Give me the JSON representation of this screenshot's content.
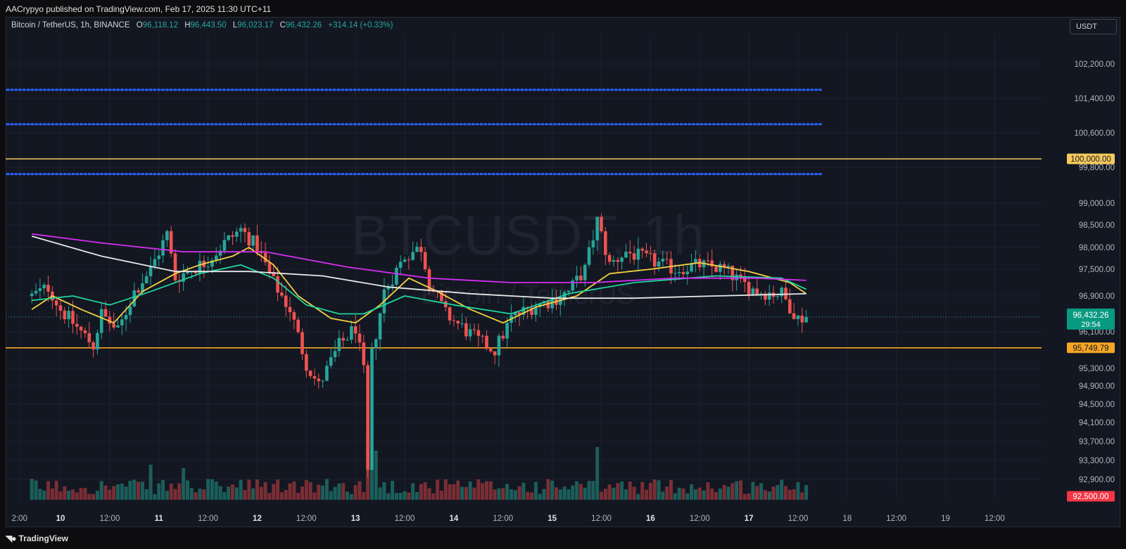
{
  "header": {
    "published": "AACrypyo published on TradingView.com, Feb 17, 2025 11:30 UTC+11"
  },
  "legend": {
    "symbol": "Bitcoin / TetherUS, 1h, BINANCE",
    "o_label": "O",
    "o": "96,118.12",
    "h_label": "H",
    "h": "96,443.50",
    "l_label": "L",
    "l": "96,023.17",
    "c_label": "C",
    "c": "96,432.26",
    "change": "+314.14 (+0.33%)"
  },
  "currency_button": "USDT",
  "watermark": {
    "ticker": "BTCUSDT, 1h",
    "name": "Bitcoin / TetherUS"
  },
  "footer": {
    "logo": "TradingView"
  },
  "colors": {
    "background": "#131722",
    "grid": "#1e2230",
    "up": "#26a69a",
    "down": "#ef5350",
    "volume_up": "#1b5e5a",
    "volume_down": "#7a2e34",
    "ma_yellow": "#f5d042",
    "ma_green": "#1fd6a0",
    "ma_magenta": "#d42ef0",
    "ma_white": "#e8e8e8",
    "dotted": "#2962ff",
    "level_yellow": "#f7c95c",
    "level_orange": "#f5a623",
    "current_price_bg": "#089981",
    "low_bg": "#f23645"
  },
  "chart_data": {
    "type": "candlestick",
    "title": "BTCUSDT, 1h",
    "ylim": [
      92500,
      103200
    ],
    "x_time_range": [
      "Feb 9 ~12:00",
      "Feb 19 ~21:00"
    ],
    "y_ticks": [
      "102,200.00",
      "101,400.00",
      "100,600.00",
      "99,800.00",
      "99,000.00",
      "98,500.00",
      "98,000.00",
      "97,500.00",
      "96,900.00",
      "96,100.00",
      "95,300.00",
      "94,900.00",
      "94,500.00",
      "94,100.00",
      "93,700.00",
      "93,300.00",
      "92,900.00"
    ],
    "y_tick_values": [
      102200,
      101400,
      100600,
      99800,
      99000,
      98500,
      98000,
      97500,
      96900,
      96100,
      95300,
      94900,
      94500,
      94100,
      93700,
      93300,
      92900
    ],
    "x_ticks": [
      {
        "label": "2:00",
        "hour": -10
      },
      {
        "label": "10",
        "hour": 0
      },
      {
        "label": "12:00",
        "hour": 12
      },
      {
        "label": "11",
        "hour": 24
      },
      {
        "label": "12:00",
        "hour": 36
      },
      {
        "label": "12",
        "hour": 48
      },
      {
        "label": "12:00",
        "hour": 60
      },
      {
        "label": "13",
        "hour": 72
      },
      {
        "label": "12:00",
        "hour": 84
      },
      {
        "label": "14",
        "hour": 96
      },
      {
        "label": "12:00",
        "hour": 108
      },
      {
        "label": "15",
        "hour": 120
      },
      {
        "label": "12:00",
        "hour": 132
      },
      {
        "label": "16",
        "hour": 144
      },
      {
        "label": "12:00",
        "hour": 156
      },
      {
        "label": "17",
        "hour": 168
      },
      {
        "label": "12:00",
        "hour": 180
      },
      {
        "label": "18",
        "hour": 192
      },
      {
        "label": "12:00",
        "hour": 204
      },
      {
        "label": "19",
        "hour": 216
      },
      {
        "label": "12:00",
        "hour": 228
      }
    ],
    "bold_x_ticks": [
      "10",
      "11",
      "12",
      "13",
      "14",
      "15",
      "16",
      "17"
    ],
    "horizontal_levels": [
      {
        "value": 100000,
        "label": "100,000.00",
        "style": "solid",
        "color": "#f7c95c"
      },
      {
        "value": 95749.79,
        "label": "95,749.79",
        "style": "solid",
        "color": "#f5a623"
      },
      {
        "value": 101600,
        "style": "dotted",
        "color": "#2962ff"
      },
      {
        "value": 100800,
        "style": "dotted",
        "color": "#2962ff"
      },
      {
        "value": 100000.5,
        "style": "none"
      },
      {
        "value": 99650,
        "style": "dotted",
        "color": "#2962ff"
      }
    ],
    "current_price": {
      "value": 96432.26,
      "label": "96,432.26",
      "countdown": "29:54"
    },
    "low_marker": {
      "value": 92500,
      "label": "92,500.00"
    },
    "moving_averages": [
      {
        "name": "MA yellow",
        "color": "#f5d042",
        "points": [
          [
            -7,
            96600
          ],
          [
            -2,
            96900
          ],
          [
            5,
            96600
          ],
          [
            13,
            96300
          ],
          [
            20,
            97000
          ],
          [
            28,
            97400
          ],
          [
            34,
            97600
          ],
          [
            42,
            97800
          ],
          [
            46,
            98000
          ],
          [
            52,
            97600
          ],
          [
            58,
            96900
          ],
          [
            66,
            96400
          ],
          [
            72,
            96300
          ],
          [
            78,
            96700
          ],
          [
            85,
            97300
          ],
          [
            92,
            97000
          ],
          [
            100,
            96600
          ],
          [
            108,
            96300
          ],
          [
            116,
            96650
          ],
          [
            126,
            96900
          ],
          [
            134,
            97400
          ],
          [
            144,
            97500
          ],
          [
            156,
            97650
          ],
          [
            168,
            97450
          ],
          [
            178,
            97200
          ],
          [
            182,
            96950
          ]
        ]
      },
      {
        "name": "MA green",
        "color": "#1fd6a0",
        "points": [
          [
            -7,
            96800
          ],
          [
            3,
            96900
          ],
          [
            12,
            96700
          ],
          [
            22,
            97000
          ],
          [
            34,
            97400
          ],
          [
            44,
            97600
          ],
          [
            52,
            97300
          ],
          [
            60,
            96700
          ],
          [
            68,
            96500
          ],
          [
            74,
            96500
          ],
          [
            84,
            96900
          ],
          [
            96,
            96700
          ],
          [
            110,
            96500
          ],
          [
            124,
            96950
          ],
          [
            140,
            97200
          ],
          [
            160,
            97350
          ],
          [
            176,
            97300
          ],
          [
            182,
            97050
          ]
        ]
      },
      {
        "name": "MA magenta",
        "color": "#d42ef0",
        "points": [
          [
            -7,
            98300
          ],
          [
            10,
            98100
          ],
          [
            30,
            97900
          ],
          [
            50,
            97900
          ],
          [
            70,
            97550
          ],
          [
            90,
            97300
          ],
          [
            110,
            97200
          ],
          [
            130,
            97200
          ],
          [
            150,
            97300
          ],
          [
            170,
            97300
          ],
          [
            182,
            97250
          ]
        ]
      },
      {
        "name": "MA white",
        "color": "#e8e8e8",
        "points": [
          [
            -7,
            98250
          ],
          [
            10,
            97800
          ],
          [
            28,
            97450
          ],
          [
            46,
            97450
          ],
          [
            64,
            97350
          ],
          [
            80,
            97100
          ],
          [
            100,
            96950
          ],
          [
            120,
            96850
          ],
          [
            140,
            96850
          ],
          [
            160,
            96900
          ],
          [
            182,
            96950
          ]
        ]
      }
    ],
    "candles": []
  }
}
